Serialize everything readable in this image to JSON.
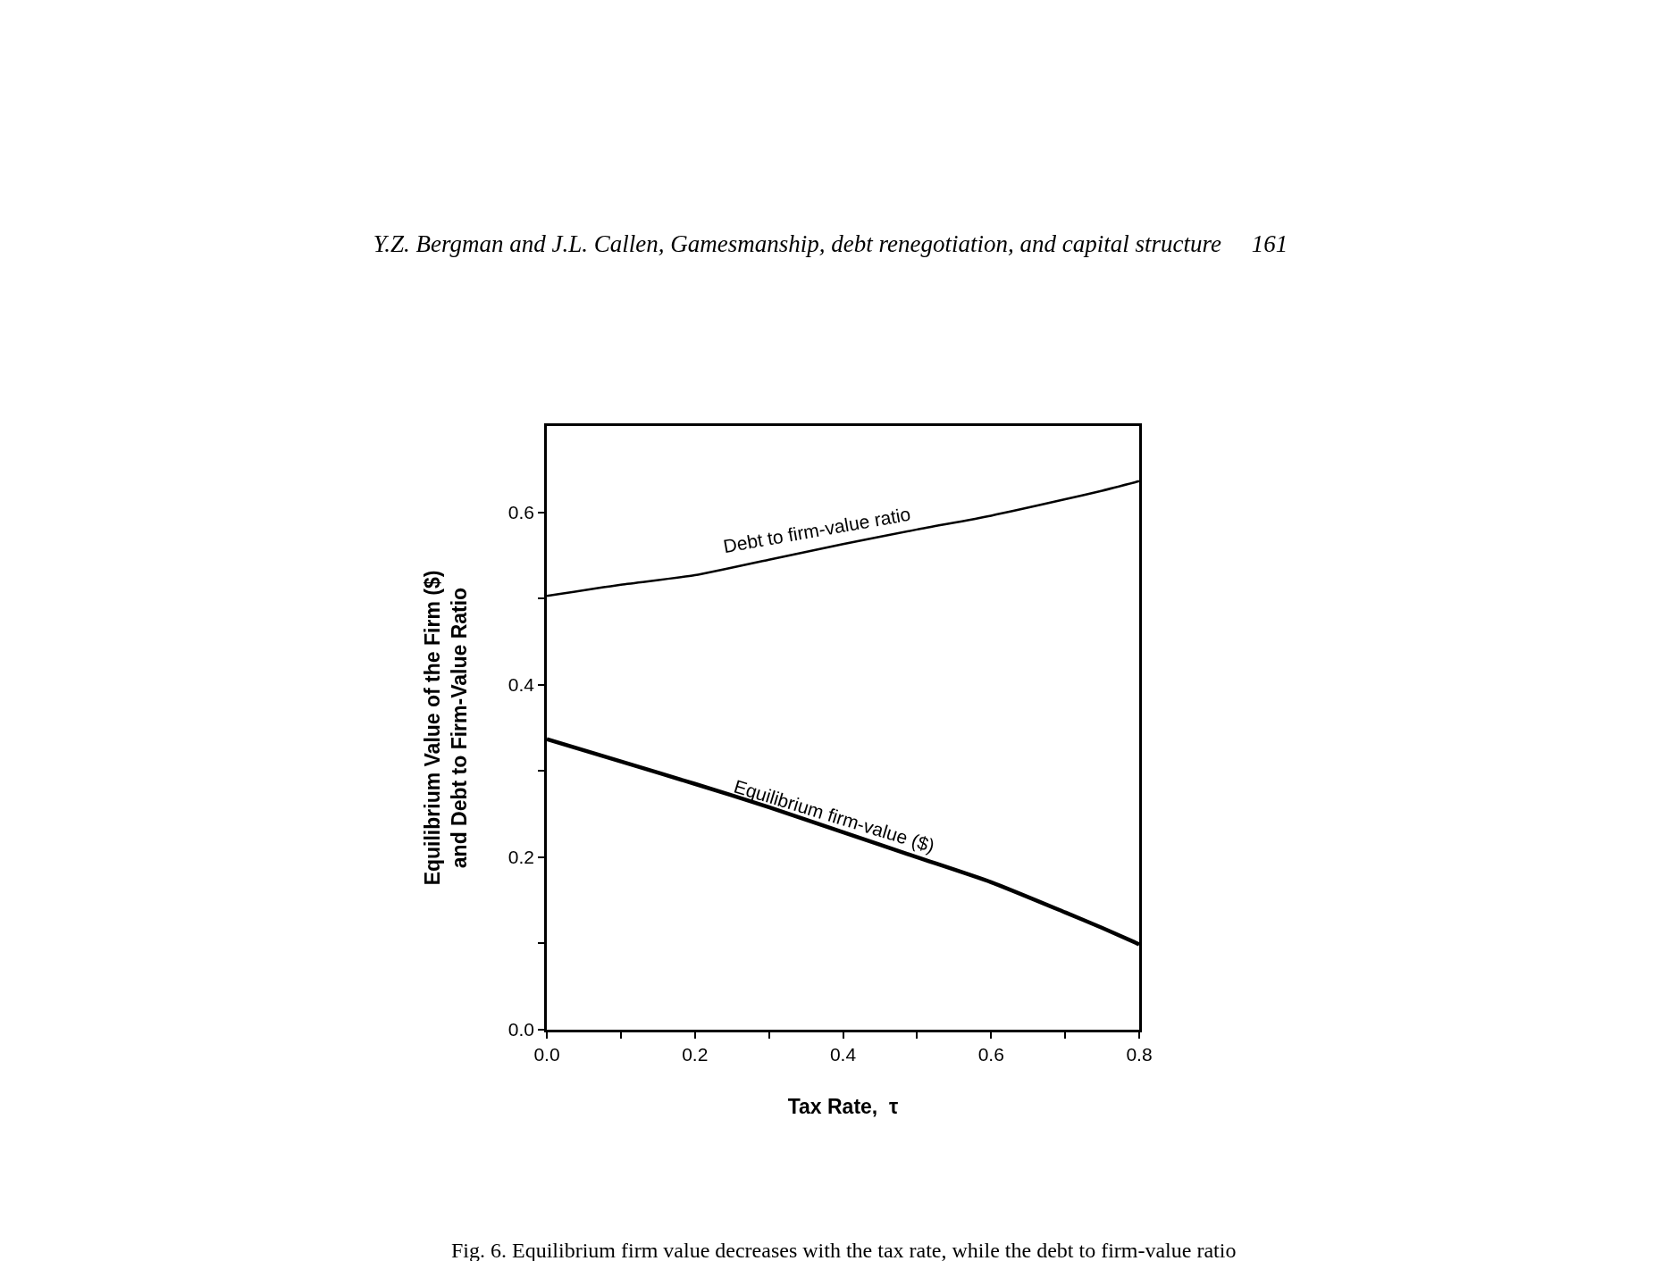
{
  "chart_data": {
    "type": "line",
    "title": "Y.Z. Bergman and J.L. Callen, Gamesmanship, debt renegotiation, and capital structure     161",
    "xlabel": "Tax Rate,  τ",
    "ylabel": "Equilibrium Value of the Firm ($)\nand Debt to Firm-Value Ratio",
    "x": [
      0.0,
      0.1,
      0.2,
      0.3,
      0.4,
      0.5,
      0.6,
      0.7,
      0.75,
      0.8
    ],
    "series": [
      {
        "name": "Debt to firm-value ratio",
        "color": "#000000",
        "values": [
          0.503,
          0.516,
          0.527,
          0.545,
          0.563,
          0.58,
          0.596,
          0.615,
          0.625,
          0.636
        ]
      },
      {
        "name": "Equilibrium firm-value ($)",
        "color": "#000000",
        "values": [
          0.337,
          0.311,
          0.285,
          0.258,
          0.229,
          0.2,
          0.171,
          0.136,
          0.118,
          0.099
        ]
      }
    ],
    "xlim": [
      0,
      0.8
    ],
    "ylim": [
      0,
      0.7
    ],
    "xticks": [
      {
        "value": 0,
        "label": "0.0"
      },
      {
        "value": 0.1,
        "label": null
      },
      0.2,
      {
        "value": 0.3,
        "label": null
      },
      0.4,
      {
        "value": 0.5,
        "label": null
      },
      0.6,
      {
        "value": 0.7,
        "label": null
      },
      0.8
    ],
    "yticks": [
      {
        "value": 0,
        "label": "0.0"
      },
      {
        "value": 0.1,
        "label": null
      },
      0.2,
      {
        "value": 0.3,
        "label": null
      },
      0.4,
      {
        "value": 0.5,
        "label": null
      },
      0.6
    ],
    "legend": false,
    "marker": "none",
    "line_style": "solid",
    "annotations": [
      "Fig. 6. Equilibrium firm value decreases with the tax rate, while the debt to firm-value ratio"
    ]
  }
}
